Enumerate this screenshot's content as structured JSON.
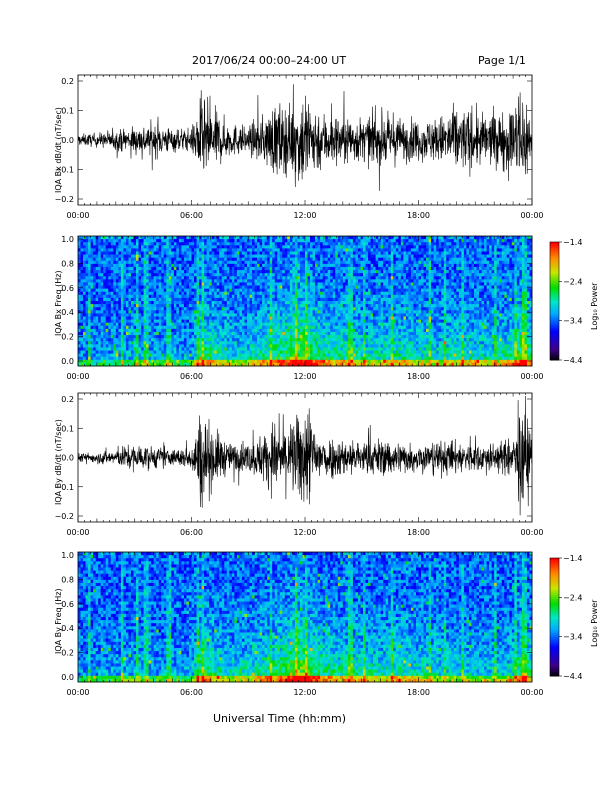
{
  "header": {
    "title": "2017/06/24   00:00–24:00 UT",
    "page": "Page 1/1"
  },
  "xlabel": "Universal Time (hh:mm)",
  "chart_data": [
    {
      "type": "line",
      "ylabel": "IQA Bx dB/dt (nT/sec)",
      "xlim": [
        0,
        24
      ],
      "ylim": [
        -0.2,
        0.2
      ],
      "x_tick_labels": [
        "00:00",
        "06:00",
        "12:00",
        "18:00",
        "00:00"
      ],
      "y_tick_labels": [
        "0.2",
        "0.1",
        "0.0",
        "−0.1",
        "−0.2"
      ],
      "envelope": {
        "x_hours": [
          0,
          1,
          2,
          3,
          4,
          5,
          6,
          6.5,
          7,
          8,
          9,
          10,
          10.5,
          11,
          11.5,
          12,
          12.5,
          13,
          14,
          15,
          16,
          17,
          18,
          19,
          20,
          21,
          22,
          23,
          23.5,
          24
        ],
        "amplitude": [
          0.02,
          0.025,
          0.035,
          0.05,
          0.06,
          0.045,
          0.04,
          0.16,
          0.12,
          0.06,
          0.05,
          0.1,
          0.14,
          0.12,
          0.13,
          0.2,
          0.13,
          0.1,
          0.09,
          0.08,
          0.09,
          0.08,
          0.07,
          0.08,
          0.12,
          0.1,
          0.09,
          0.12,
          0.2,
          0.1
        ]
      }
    },
    {
      "type": "heatmap",
      "ylabel": "IQA Bx Freq (Hz)",
      "xlim": [
        0,
        24
      ],
      "ylim": [
        0,
        1.0
      ],
      "x_tick_labels": [
        "00:00",
        "06:00",
        "12:00",
        "18:00",
        "00:00"
      ],
      "y_tick_labels": [
        "1.0",
        "0.8",
        "0.6",
        "0.4",
        "0.2",
        "0.0"
      ],
      "colorbar": {
        "label": "Log₁₀ Power",
        "ticks": [
          "−1.4",
          "−2.4",
          "−3.4",
          "−4.4"
        ],
        "range": [
          -4.4,
          -1.4
        ]
      },
      "activity_hours": [
        0,
        1,
        2,
        3,
        4,
        5,
        6,
        6.5,
        7,
        8,
        9,
        10,
        11,
        11.5,
        12,
        13,
        14,
        15,
        16,
        17,
        18,
        19,
        20,
        21,
        22,
        23,
        23.5,
        24
      ],
      "activity_level": [
        0.15,
        0.15,
        0.2,
        0.25,
        0.25,
        0.2,
        0.2,
        0.55,
        0.5,
        0.35,
        0.35,
        0.5,
        0.6,
        0.8,
        0.7,
        0.5,
        0.45,
        0.4,
        0.4,
        0.45,
        0.4,
        0.35,
        0.45,
        0.4,
        0.35,
        0.5,
        0.7,
        0.5
      ]
    },
    {
      "type": "line",
      "ylabel": "IQA By dB/dt (nT/sec)",
      "xlim": [
        0,
        24
      ],
      "ylim": [
        -0.2,
        0.2
      ],
      "x_tick_labels": [
        "00:00",
        "06:00",
        "12:00",
        "18:00",
        "00:00"
      ],
      "y_tick_labels": [
        "0.2",
        "0.1",
        "0.0",
        "−0.1",
        "−0.2"
      ],
      "envelope": {
        "x_hours": [
          0,
          1,
          2,
          3,
          4,
          5,
          6,
          6.5,
          7,
          8,
          9,
          10,
          10.5,
          11,
          11.5,
          12,
          12.5,
          13,
          14,
          15,
          16,
          17,
          18,
          19,
          20,
          21,
          22,
          23,
          23.5,
          24
        ],
        "amplitude": [
          0.015,
          0.02,
          0.03,
          0.05,
          0.04,
          0.03,
          0.04,
          0.18,
          0.12,
          0.05,
          0.05,
          0.1,
          0.12,
          0.12,
          0.14,
          0.2,
          0.12,
          0.08,
          0.07,
          0.06,
          0.07,
          0.06,
          0.05,
          0.06,
          0.06,
          0.05,
          0.05,
          0.07,
          0.2,
          0.1
        ]
      }
    },
    {
      "type": "heatmap",
      "ylabel": "IQA By Freq (Hz)",
      "xlim": [
        0,
        24
      ],
      "ylim": [
        0,
        1.0
      ],
      "x_tick_labels": [
        "00:00",
        "06:00",
        "12:00",
        "18:00",
        "00:00"
      ],
      "y_tick_labels": [
        "1.0",
        "0.8",
        "0.6",
        "0.4",
        "0.2",
        "0.0"
      ],
      "colorbar": {
        "label": "Log₁₀ Power",
        "ticks": [
          "−1.4",
          "−2.4",
          "−3.4",
          "−4.4"
        ],
        "range": [
          -4.4,
          -1.4
        ]
      },
      "activity_hours": [
        0,
        1,
        2,
        3,
        4,
        5,
        6,
        6.5,
        7,
        8,
        9,
        10,
        11,
        11.5,
        12,
        13,
        14,
        15,
        16,
        17,
        18,
        19,
        20,
        21,
        22,
        23,
        23.5,
        24
      ],
      "activity_level": [
        0.15,
        0.15,
        0.2,
        0.25,
        0.2,
        0.2,
        0.2,
        0.6,
        0.5,
        0.35,
        0.35,
        0.5,
        0.6,
        0.8,
        0.7,
        0.5,
        0.45,
        0.45,
        0.4,
        0.45,
        0.4,
        0.35,
        0.35,
        0.3,
        0.3,
        0.35,
        0.6,
        0.45
      ]
    }
  ]
}
